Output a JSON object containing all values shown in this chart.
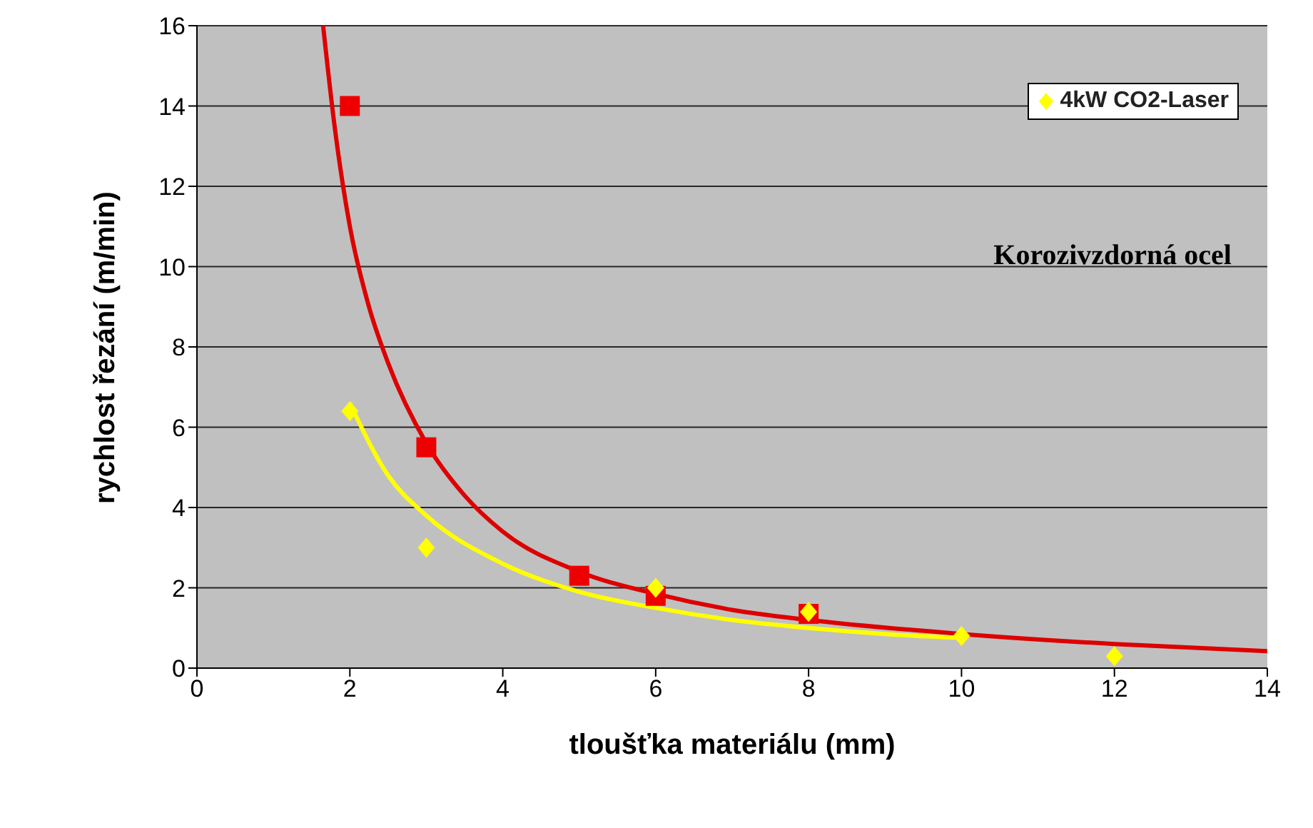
{
  "chart_data": {
    "type": "scatter",
    "xlabel": "tloušťka materiálu (mm)",
    "ylabel": "rychlost řezání (m/min)",
    "annotations": [
      "Korozivzdorná ocel"
    ],
    "xlim": [
      0,
      14
    ],
    "xticks": [
      0,
      2,
      4,
      6,
      8,
      10,
      12,
      14
    ],
    "ylim": [
      0,
      16
    ],
    "yticks": [
      0,
      2,
      4,
      6,
      8,
      10,
      12,
      14,
      16
    ],
    "grid": "y",
    "legend": "top right",
    "series": [
      {
        "color": "#ee0000",
        "marker": "square",
        "x": [
          2,
          3,
          5,
          6,
          8
        ],
        "values": [
          14,
          5.5,
          2.3,
          1.8,
          1.35
        ]
      },
      {
        "name": "4kW CO2-Laser",
        "color": "#ffff00",
        "marker": "diamond",
        "x": [
          2,
          3,
          6,
          8,
          10,
          12
        ],
        "values": [
          6.4,
          3,
          2,
          1.4,
          0.8,
          0.3
        ]
      },
      {
        "type": "line",
        "color": "#dd0000",
        "marker": "none",
        "x": [
          1.65,
          1.8,
          2,
          2.25,
          2.5,
          3,
          3.5,
          4,
          5,
          6,
          7,
          8,
          10,
          12,
          14
        ],
        "values": [
          16,
          13.5,
          11,
          9,
          7.6,
          5.6,
          4.3,
          3.4,
          2.4,
          1.85,
          1.45,
          1.2,
          0.85,
          0.6,
          0.42
        ]
      },
      {
        "type": "line",
        "color": "#ffff00",
        "marker": "none",
        "x": [
          2,
          2.5,
          3,
          4,
          5,
          6,
          7,
          8,
          9,
          10
        ],
        "values": [
          6.6,
          4.8,
          3.8,
          2.6,
          1.9,
          1.5,
          1.2,
          1.0,
          0.85,
          0.75
        ]
      }
    ]
  }
}
